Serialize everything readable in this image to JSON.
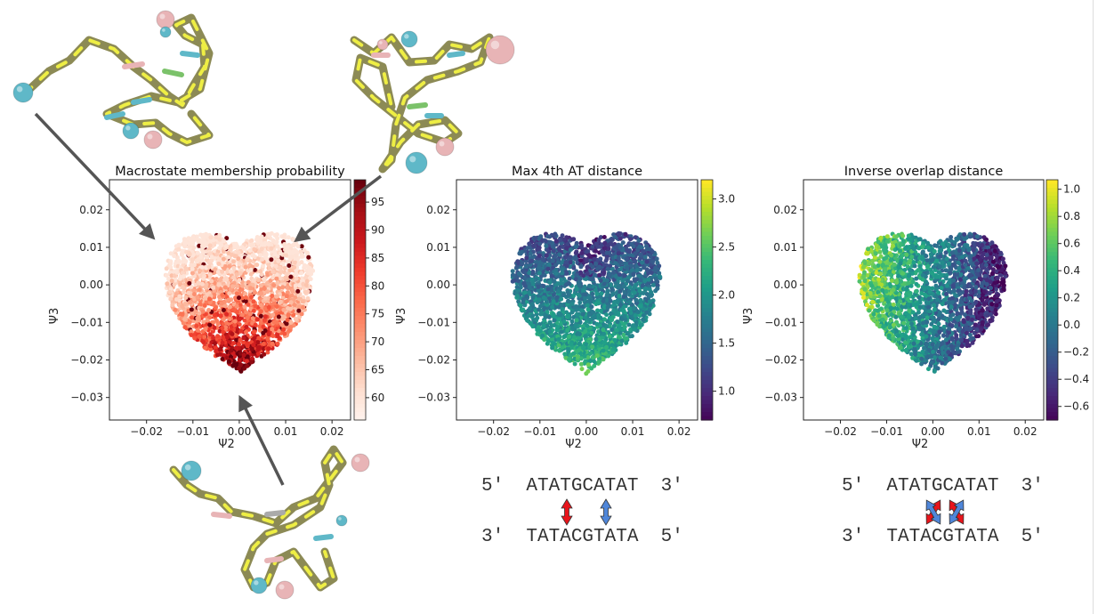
{
  "chart_data": [
    {
      "type": "scatter",
      "title": "Macrostate membership probability",
      "xlabel": "Ψ2",
      "ylabel": "Ψ3",
      "xlim": [
        -0.028,
        0.024
      ],
      "ylim": [
        -0.036,
        0.028
      ],
      "xticks": [
        "−0.02",
        "−0.01",
        "0.00",
        "0.01",
        "0.02"
      ],
      "xtick_values": [
        -0.02,
        -0.01,
        0.0,
        0.01,
        0.02
      ],
      "yticks": [
        "0.02",
        "0.01",
        "0.00",
        "−0.01",
        "−0.02",
        "−0.03"
      ],
      "ytick_values": [
        0.02,
        0.01,
        0.0,
        -0.01,
        -0.02,
        -0.03
      ],
      "colormap": "Reds",
      "colorbar": {
        "range": [
          56,
          99
        ],
        "ticks": [
          "60",
          "65",
          "70",
          "75",
          "80",
          "85",
          "90",
          "95"
        ],
        "tick_values": [
          60,
          65,
          70,
          75,
          80,
          85,
          90,
          95
        ]
      },
      "color_by": "distance_from_bottom",
      "grid": false
    },
    {
      "type": "scatter",
      "title": "Max 4th AT distance",
      "xlabel": "Ψ2",
      "ylabel": "Ψ3",
      "xlim": [
        -0.028,
        0.024
      ],
      "ylim": [
        -0.036,
        0.028
      ],
      "xticks": [
        "−0.02",
        "−0.01",
        "0.00",
        "0.01",
        "0.02"
      ],
      "xtick_values": [
        -0.02,
        -0.01,
        0.0,
        0.01,
        0.02
      ],
      "yticks": [
        "0.02",
        "0.01",
        "0.00",
        "−0.01",
        "−0.02",
        "−0.03"
      ],
      "ytick_values": [
        0.02,
        0.01,
        0.0,
        -0.01,
        -0.02,
        -0.03
      ],
      "colormap": "viridis",
      "colorbar": {
        "range": [
          0.7,
          3.2
        ],
        "ticks": [
          "1.0",
          "1.5",
          "2.0",
          "2.5",
          "3.0"
        ],
        "tick_values": [
          1.0,
          1.5,
          2.0,
          2.5,
          3.0
        ]
      },
      "color_by": "vertical_low_top",
      "grid": false
    },
    {
      "type": "scatter",
      "title": "Inverse overlap distance",
      "xlabel": "Ψ2",
      "ylabel": "Ψ3",
      "xlim": [
        -0.028,
        0.024
      ],
      "ylim": [
        -0.036,
        0.028
      ],
      "xticks": [
        "−0.02",
        "−0.01",
        "0.00",
        "0.01",
        "0.02"
      ],
      "xtick_values": [
        -0.02,
        -0.01,
        0.0,
        0.01,
        0.02
      ],
      "yticks": [
        "0.02",
        "0.01",
        "0.00",
        "−0.01",
        "−0.02",
        "−0.03"
      ],
      "ytick_values": [
        0.02,
        0.01,
        0.0,
        -0.01,
        -0.02,
        -0.03
      ],
      "colormap": "viridis",
      "colorbar": {
        "range": [
          -0.7,
          1.07
        ],
        "ticks": [
          "−0.6",
          "−0.4",
          "−0.2",
          "0.0",
          "0.2",
          "0.4",
          "0.6",
          "0.8",
          "1.0"
        ],
        "tick_values": [
          -0.6,
          -0.4,
          -0.2,
          0.0,
          0.2,
          0.4,
          0.6,
          0.8,
          1.0
        ]
      },
      "color_by": "horizontal_high_left",
      "grid": false
    }
  ],
  "dna_panels": [
    {
      "top_strand": "5′  ATATGCATAT  3′",
      "bottom_strand": "3′  TATACGTATA  5′",
      "arrow_style": "parallel"
    },
    {
      "top_strand": "5′  ATATGCATAT  3′",
      "bottom_strand": "3′  TATACGTATA  5′",
      "arrow_style": "crossed"
    }
  ],
  "arrow_colors": {
    "red": "#e8141b",
    "blue": "#4f86d9"
  },
  "molecule_colors": {
    "backbone": "#8c8a55",
    "base_yellow": "#eeee44",
    "cyan": "#5fb8c8",
    "pink": "#e8b4b6"
  }
}
